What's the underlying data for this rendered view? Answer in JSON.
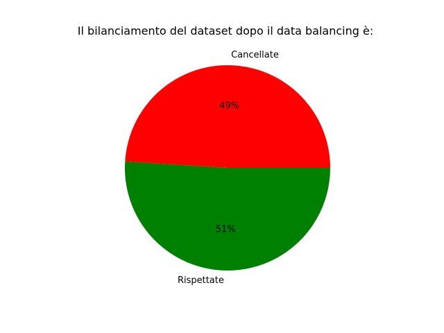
{
  "chart_data": {
    "type": "pie",
    "title": "Il bilanciamento del dataset dopo il data balancing è:",
    "slices": [
      {
        "label": "Cancellate",
        "value": 49,
        "pct_label": "49%",
        "color": "#ff0000"
      },
      {
        "label": "Rispettate",
        "value": 51,
        "pct_label": "51%",
        "color": "#008000"
      }
    ],
    "start_angle_deg": 0,
    "direction": "counterclockwise"
  }
}
